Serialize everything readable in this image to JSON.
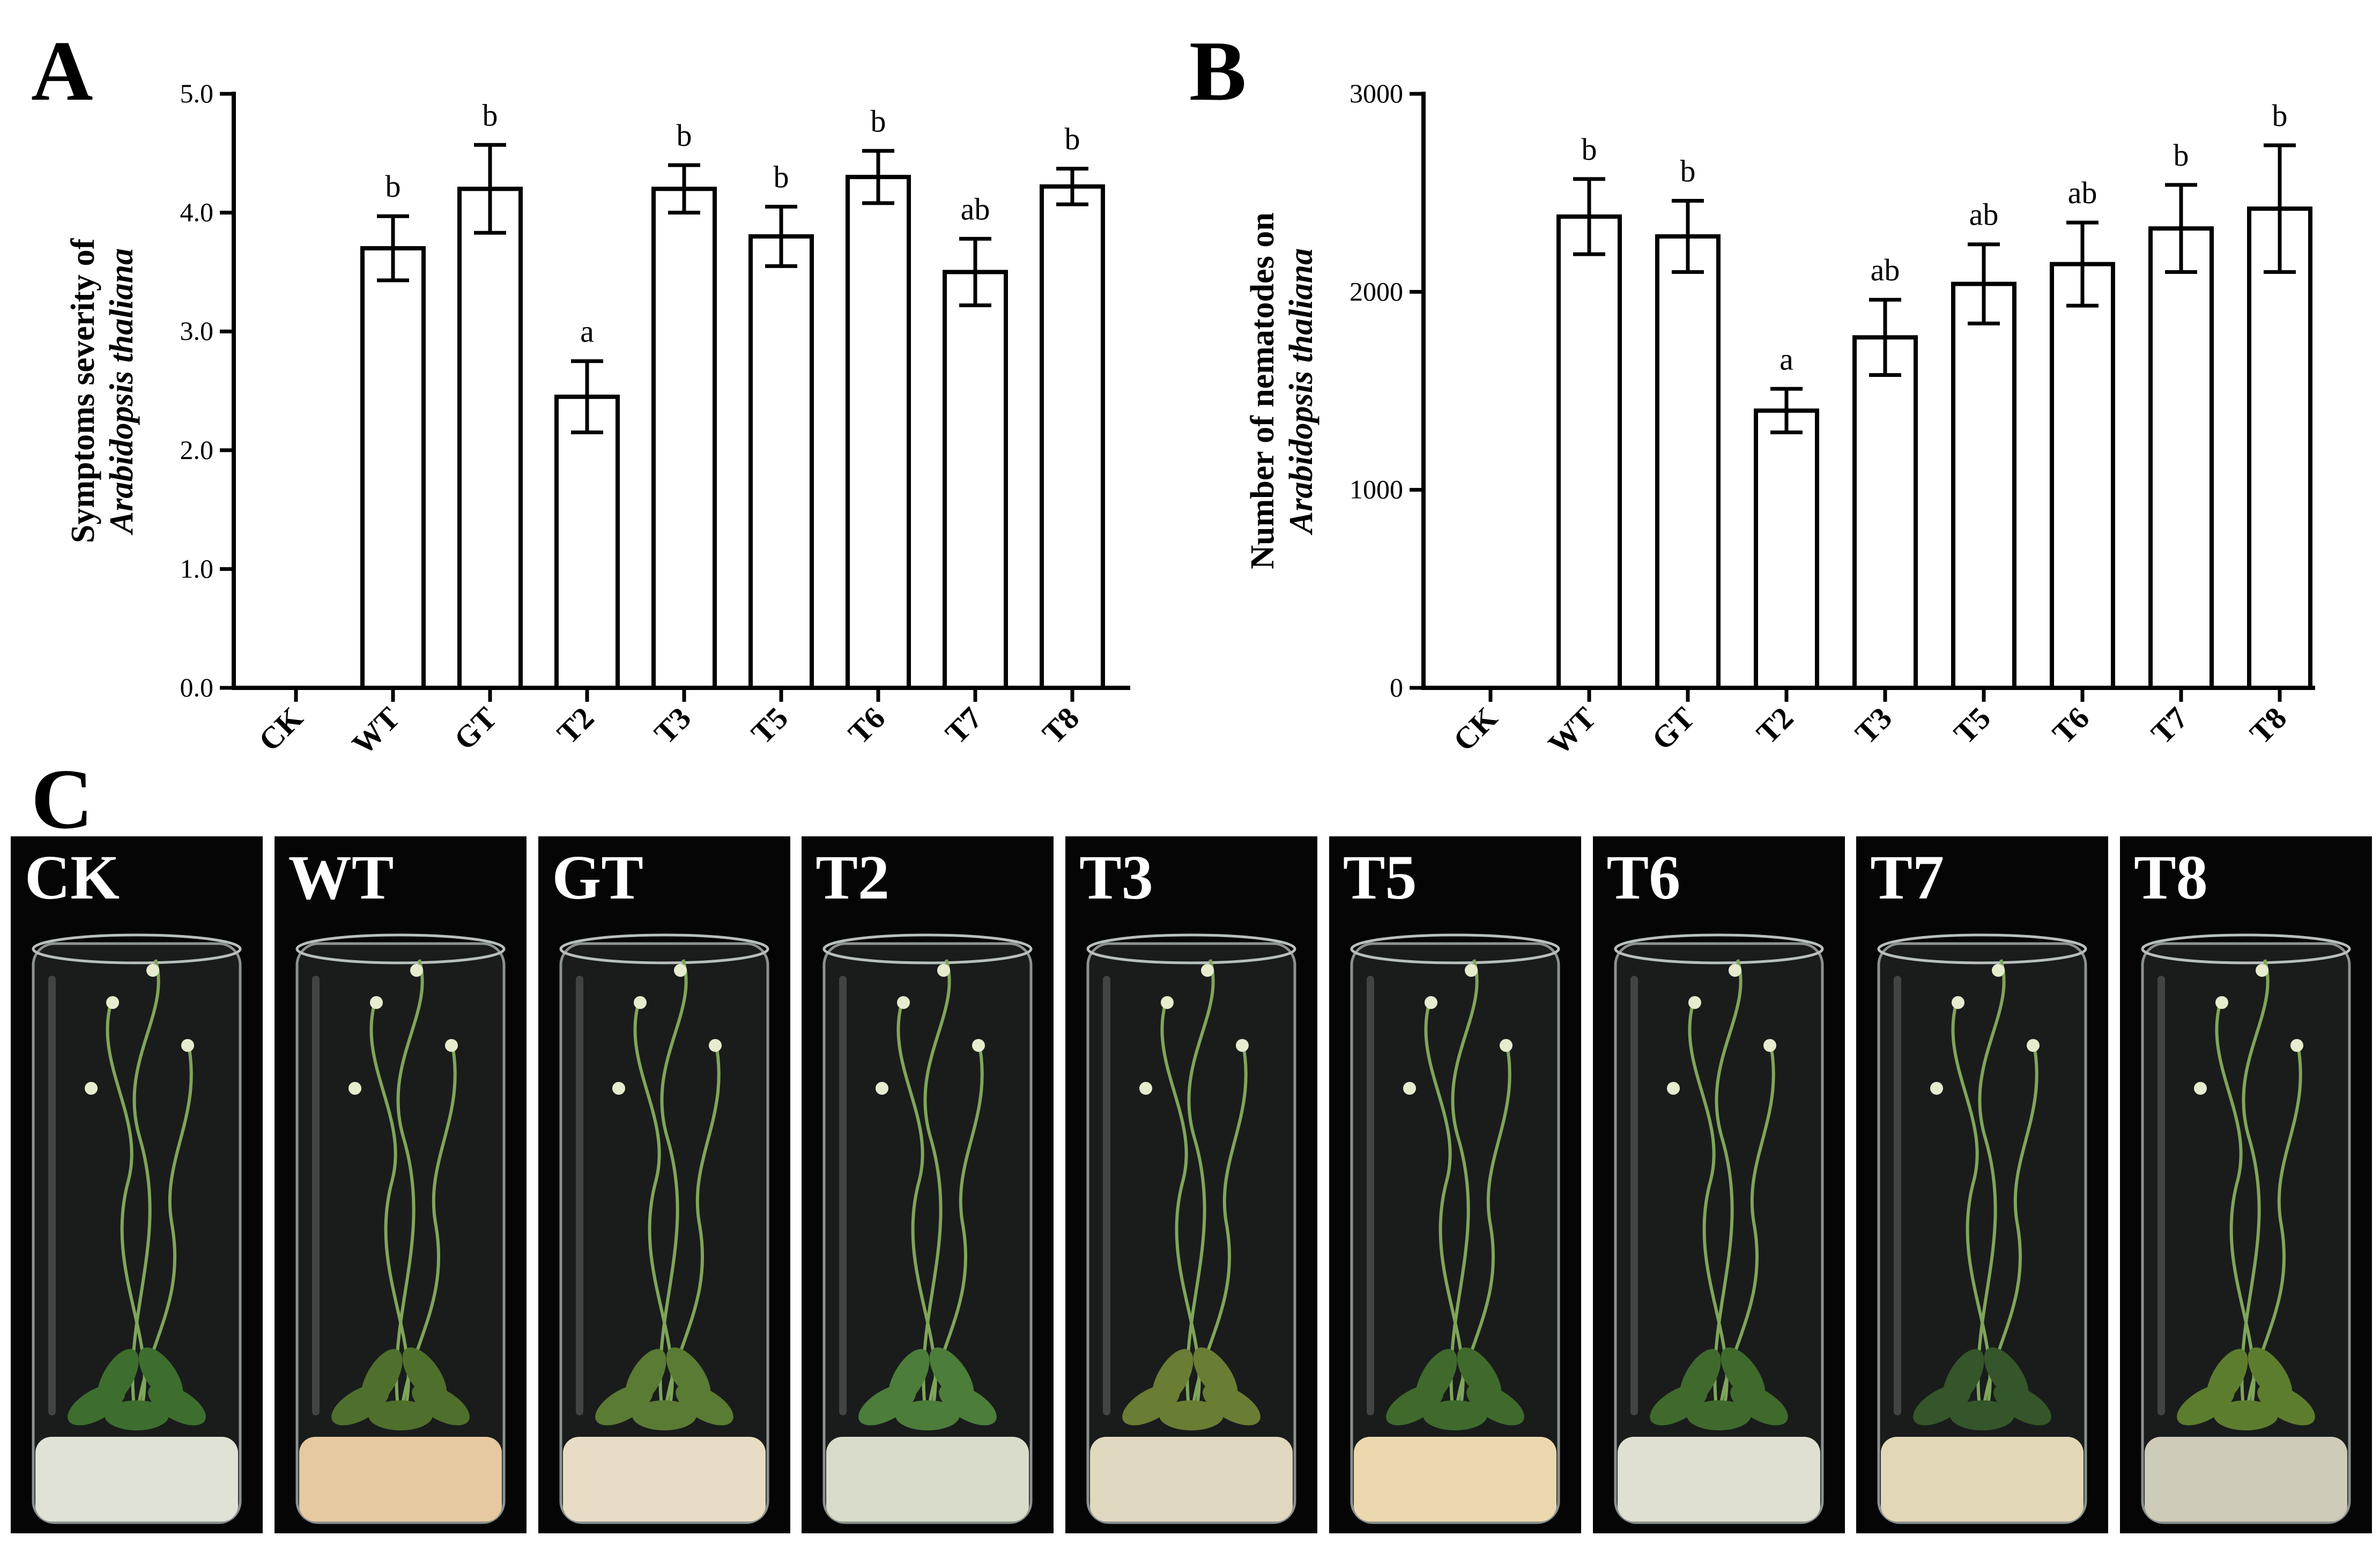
{
  "panels": {
    "a_label": "A",
    "b_label": "B",
    "c_label": "C"
  },
  "chart_data": [
    {
      "type": "bar",
      "panel": "A",
      "categories": [
        "CK",
        "WT",
        "GT",
        "T2",
        "T3",
        "T5",
        "T6",
        "T7",
        "T8"
      ],
      "values": [
        0,
        3.7,
        4.2,
        2.45,
        4.2,
        3.8,
        4.3,
        3.5,
        4.22
      ],
      "errors": [
        0,
        0.27,
        0.37,
        0.3,
        0.2,
        0.25,
        0.22,
        0.28,
        0.15
      ],
      "significance": [
        "",
        "b",
        "b",
        "a",
        "b",
        "b",
        "b",
        "ab",
        "b"
      ],
      "ylabel_line1": "Symptoms severity of",
      "ylabel_line2": "Arabidopsis thaliana",
      "ylim": [
        0,
        5.0
      ],
      "yticks": [
        "0.0",
        "1.0",
        "2.0",
        "3.0",
        "4.0",
        "5.0"
      ],
      "grid": false,
      "bar_fill": "#ffffff",
      "bar_stroke": "#000000"
    },
    {
      "type": "bar",
      "panel": "B",
      "categories": [
        "CK",
        "WT",
        "GT",
        "T2",
        "T3",
        "T5",
        "T6",
        "T7",
        "T8"
      ],
      "values": [
        0,
        2380,
        2280,
        1400,
        1770,
        2040,
        2140,
        2320,
        2420
      ],
      "errors": [
        0,
        190,
        180,
        110,
        190,
        200,
        210,
        220,
        320
      ],
      "significance": [
        "",
        "b",
        "b",
        "a",
        "ab",
        "ab",
        "ab",
        "b",
        "b"
      ],
      "ylabel_line1": "Number of nematodes on",
      "ylabel_line2": "Arabidopsis thaliana",
      "ylim": [
        0,
        3000
      ],
      "yticks": [
        "0",
        "1000",
        "2000",
        "3000"
      ],
      "grid": false,
      "bar_fill": "#ffffff",
      "bar_stroke": "#000000"
    }
  ],
  "photos": {
    "labels": [
      "CK",
      "WT",
      "GT",
      "T2",
      "T3",
      "T5",
      "T6",
      "T7",
      "T8"
    ],
    "background": "#050505",
    "medium_colors": [
      "#dfe2d4",
      "#e6c9a0",
      "#e8dcc4",
      "#d9dccb",
      "#e0d8bf",
      "#ecd8ae",
      "#dfe0d2",
      "#e2d7b7",
      "#cfcbb9"
    ],
    "leaf_colors": [
      "#3d6e2e",
      "#4f6f2c",
      "#5a7b33",
      "#4c7d3a",
      "#6a7d34",
      "#3f6a2c",
      "#3f6a2c",
      "#35552a",
      "#5d7d2e"
    ]
  }
}
